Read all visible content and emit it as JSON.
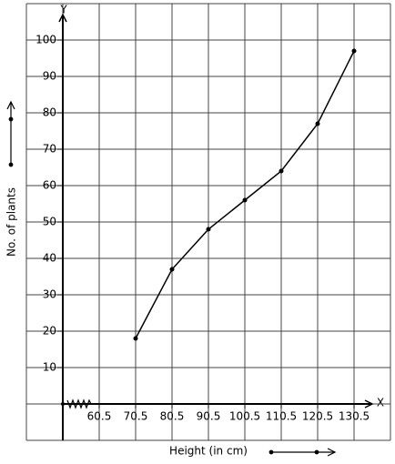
{
  "chart_data": {
    "type": "line",
    "x_label": "Height (in cm)",
    "y_label": "No. of plants",
    "x_axis_name": "X",
    "y_axis_name": "Y",
    "x": [
      70.5,
      80.5,
      90.5,
      100.5,
      110.5,
      120.5,
      130.5
    ],
    "values": [
      18,
      37,
      48,
      56,
      64,
      77,
      97
    ],
    "color": "#000000",
    "xlim": [
      40.5,
      140.5
    ],
    "ylim": [
      -10,
      110
    ],
    "xticks": [
      60.5,
      70.5,
      80.5,
      90.5,
      100.5,
      110.5,
      120.5,
      130.5
    ],
    "yticks": [
      10,
      20,
      30,
      40,
      50,
      60,
      70,
      80,
      90,
      100
    ],
    "grid": true
  }
}
